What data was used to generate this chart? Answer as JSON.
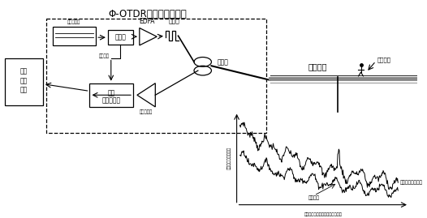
{
  "title": "Φ-OTDR光源及解调系统",
  "bg_color": "#ffffff",
  "label_laser": "宿带激光器",
  "label_modulator": "调制器",
  "label_edfa": "EDFA",
  "label_pulse": "光脉冲",
  "label_coupler": "耦合器",
  "label_sync": "同步触发",
  "label_highspeed_line1": "高速",
  "label_highspeed_line2": "数据采集卡",
  "label_detector": "光电探测器",
  "label_central_line1": "中央",
  "label_central_line2": "处理",
  "label_central_line3": "单元",
  "label_buried": "埋设光羆",
  "label_intrusion_pos": "入侵位置",
  "label_signal": "入侵时的监测信号",
  "label_subtraction": "相减结果",
  "label_xaxis": "后向散射相干光沿光羆的传输时间",
  "label_yaxis": "后向散射相干光强度"
}
